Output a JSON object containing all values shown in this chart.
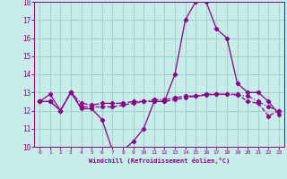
{
  "xlabel": "Windchill (Refroidissement éolien,°C)",
  "background_color": "#c8ece8",
  "line_color": "#880088",
  "grid_color": "#99cccc",
  "x_min": 0,
  "x_max": 23,
  "y_min": 10,
  "y_max": 18,
  "series": {
    "line1": [
      12.5,
      12.9,
      12.0,
      13.0,
      12.1,
      12.1,
      11.5,
      9.8,
      9.8,
      10.3,
      11.0,
      12.5,
      12.5,
      14.0,
      17.0,
      18.0,
      18.0,
      16.5,
      16.0,
      13.5,
      13.0,
      13.0,
      12.5,
      11.8
    ],
    "line2": [
      12.5,
      12.5,
      12.0,
      13.0,
      12.2,
      12.2,
      12.2,
      12.2,
      12.3,
      12.4,
      12.5,
      12.5,
      12.5,
      12.6,
      12.7,
      12.8,
      12.9,
      12.9,
      12.9,
      12.9,
      12.5,
      12.4,
      11.7,
      12.0
    ],
    "line3": [
      12.5,
      12.5,
      12.0,
      13.0,
      12.4,
      12.3,
      12.4,
      12.4,
      12.4,
      12.5,
      12.5,
      12.6,
      12.6,
      12.7,
      12.8,
      12.8,
      12.85,
      12.9,
      12.9,
      12.85,
      12.8,
      12.5,
      12.2,
      12.0
    ]
  }
}
